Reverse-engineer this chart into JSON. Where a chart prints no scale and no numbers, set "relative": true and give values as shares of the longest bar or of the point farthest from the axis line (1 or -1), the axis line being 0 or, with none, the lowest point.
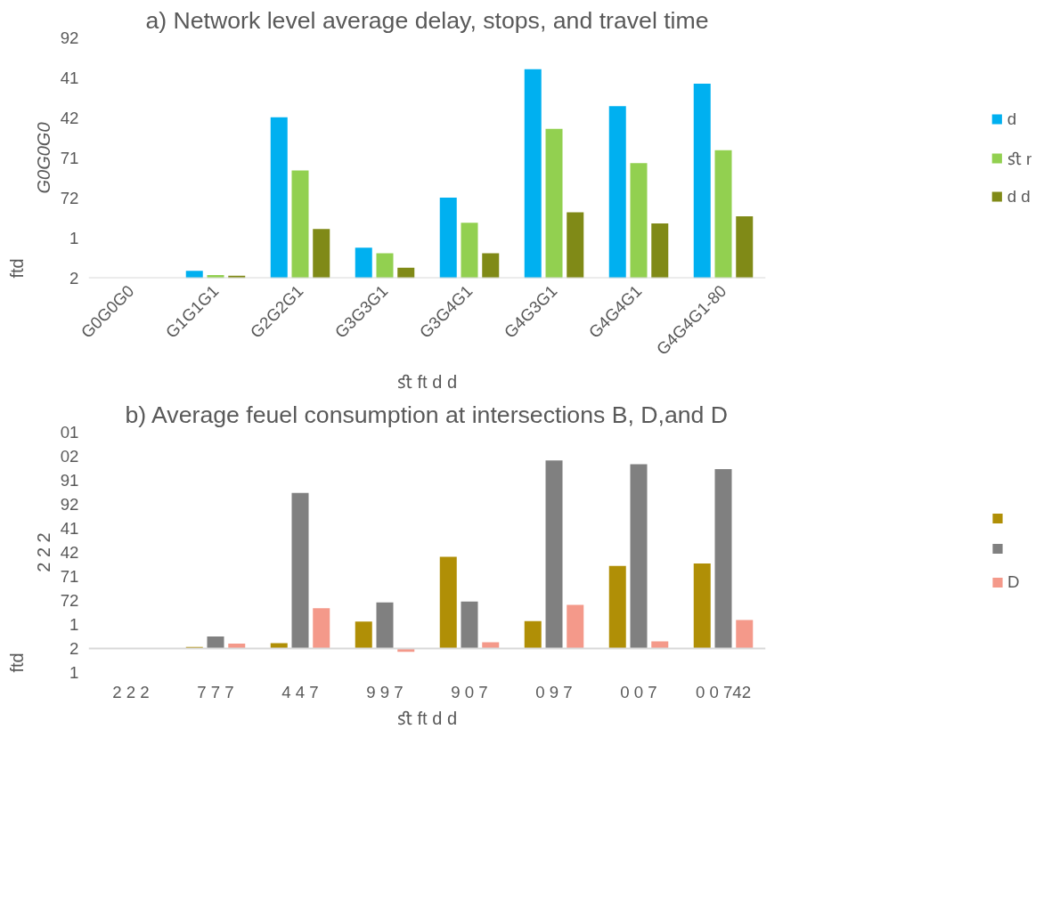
{
  "chart_data": [
    {
      "type": "bar",
      "relative": true,
      "title": "a) Network level average delay, stops, and travel time",
      "xlabel": "ﬆ ft d d",
      "ylabel": "G0G0G0",
      "annotations": [
        "2",
        "1",
        "72",
        "71",
        "42",
        "41",
        "92",
        "ftd"
      ],
      "categories": [
        "G0G0G0",
        "G1G1G1",
        "G2G2G1",
        "G3G3G1",
        "G3G4G1",
        "G4G3G1",
        "G4G4G1",
        "G4G4G1-80"
      ],
      "series": [
        {
          "name": "d",
          "color": "#00b0f0",
          "values": [
            0,
            0.035,
            0.77,
            0.146,
            0.385,
            1,
            0.823,
            0.931
          ]
        },
        {
          "name": "ﬆ r",
          "color": "#92d050",
          "values": [
            0,
            0.015,
            0.515,
            0.119,
            0.265,
            0.715,
            0.55,
            0.612
          ]
        },
        {
          "name": "d d",
          "color": "#808a17",
          "values": [
            0,
            0.012,
            0.235,
            0.05,
            0.119,
            0.315,
            0.262,
            0.296
          ]
        }
      ],
      "grid": false,
      "legend": "right"
    },
    {
      "type": "bar",
      "relative": true,
      "title": "b) Average feuel consumption at intersections B, D,and D",
      "xlabel": "ﬆ ft d d",
      "ylabel": "2 2 2",
      "annotations": [
        "1",
        "2",
        "1",
        "72",
        "71",
        "42",
        "41",
        "92",
        "91",
        "02",
        "01",
        "ftd"
      ],
      "categories": [
        "2 2 2",
        "7 7 7",
        "4 4 7",
        "9 9 7",
        "9 0 7",
        "0 9 7",
        "0 0 7",
        "0 0 742"
      ],
      "series": [
        {
          "color": "#b08f06",
          "values": [
            0,
            0.008,
            0.028,
            0.143,
            0.487,
            0.145,
            0.439,
            0.452
          ]
        },
        {
          "color": "#808080",
          "values": [
            0,
            0.064,
            0.827,
            0.245,
            0.25,
            1,
            0.98,
            0.954
          ]
        },
        {
          "name": "D",
          "color": "#f4998a",
          "values": [
            0,
            0.026,
            0.214,
            -0.018,
            0.033,
            0.232,
            0.038,
            0.151
          ]
        }
      ],
      "grid": false,
      "legend": "right"
    }
  ]
}
